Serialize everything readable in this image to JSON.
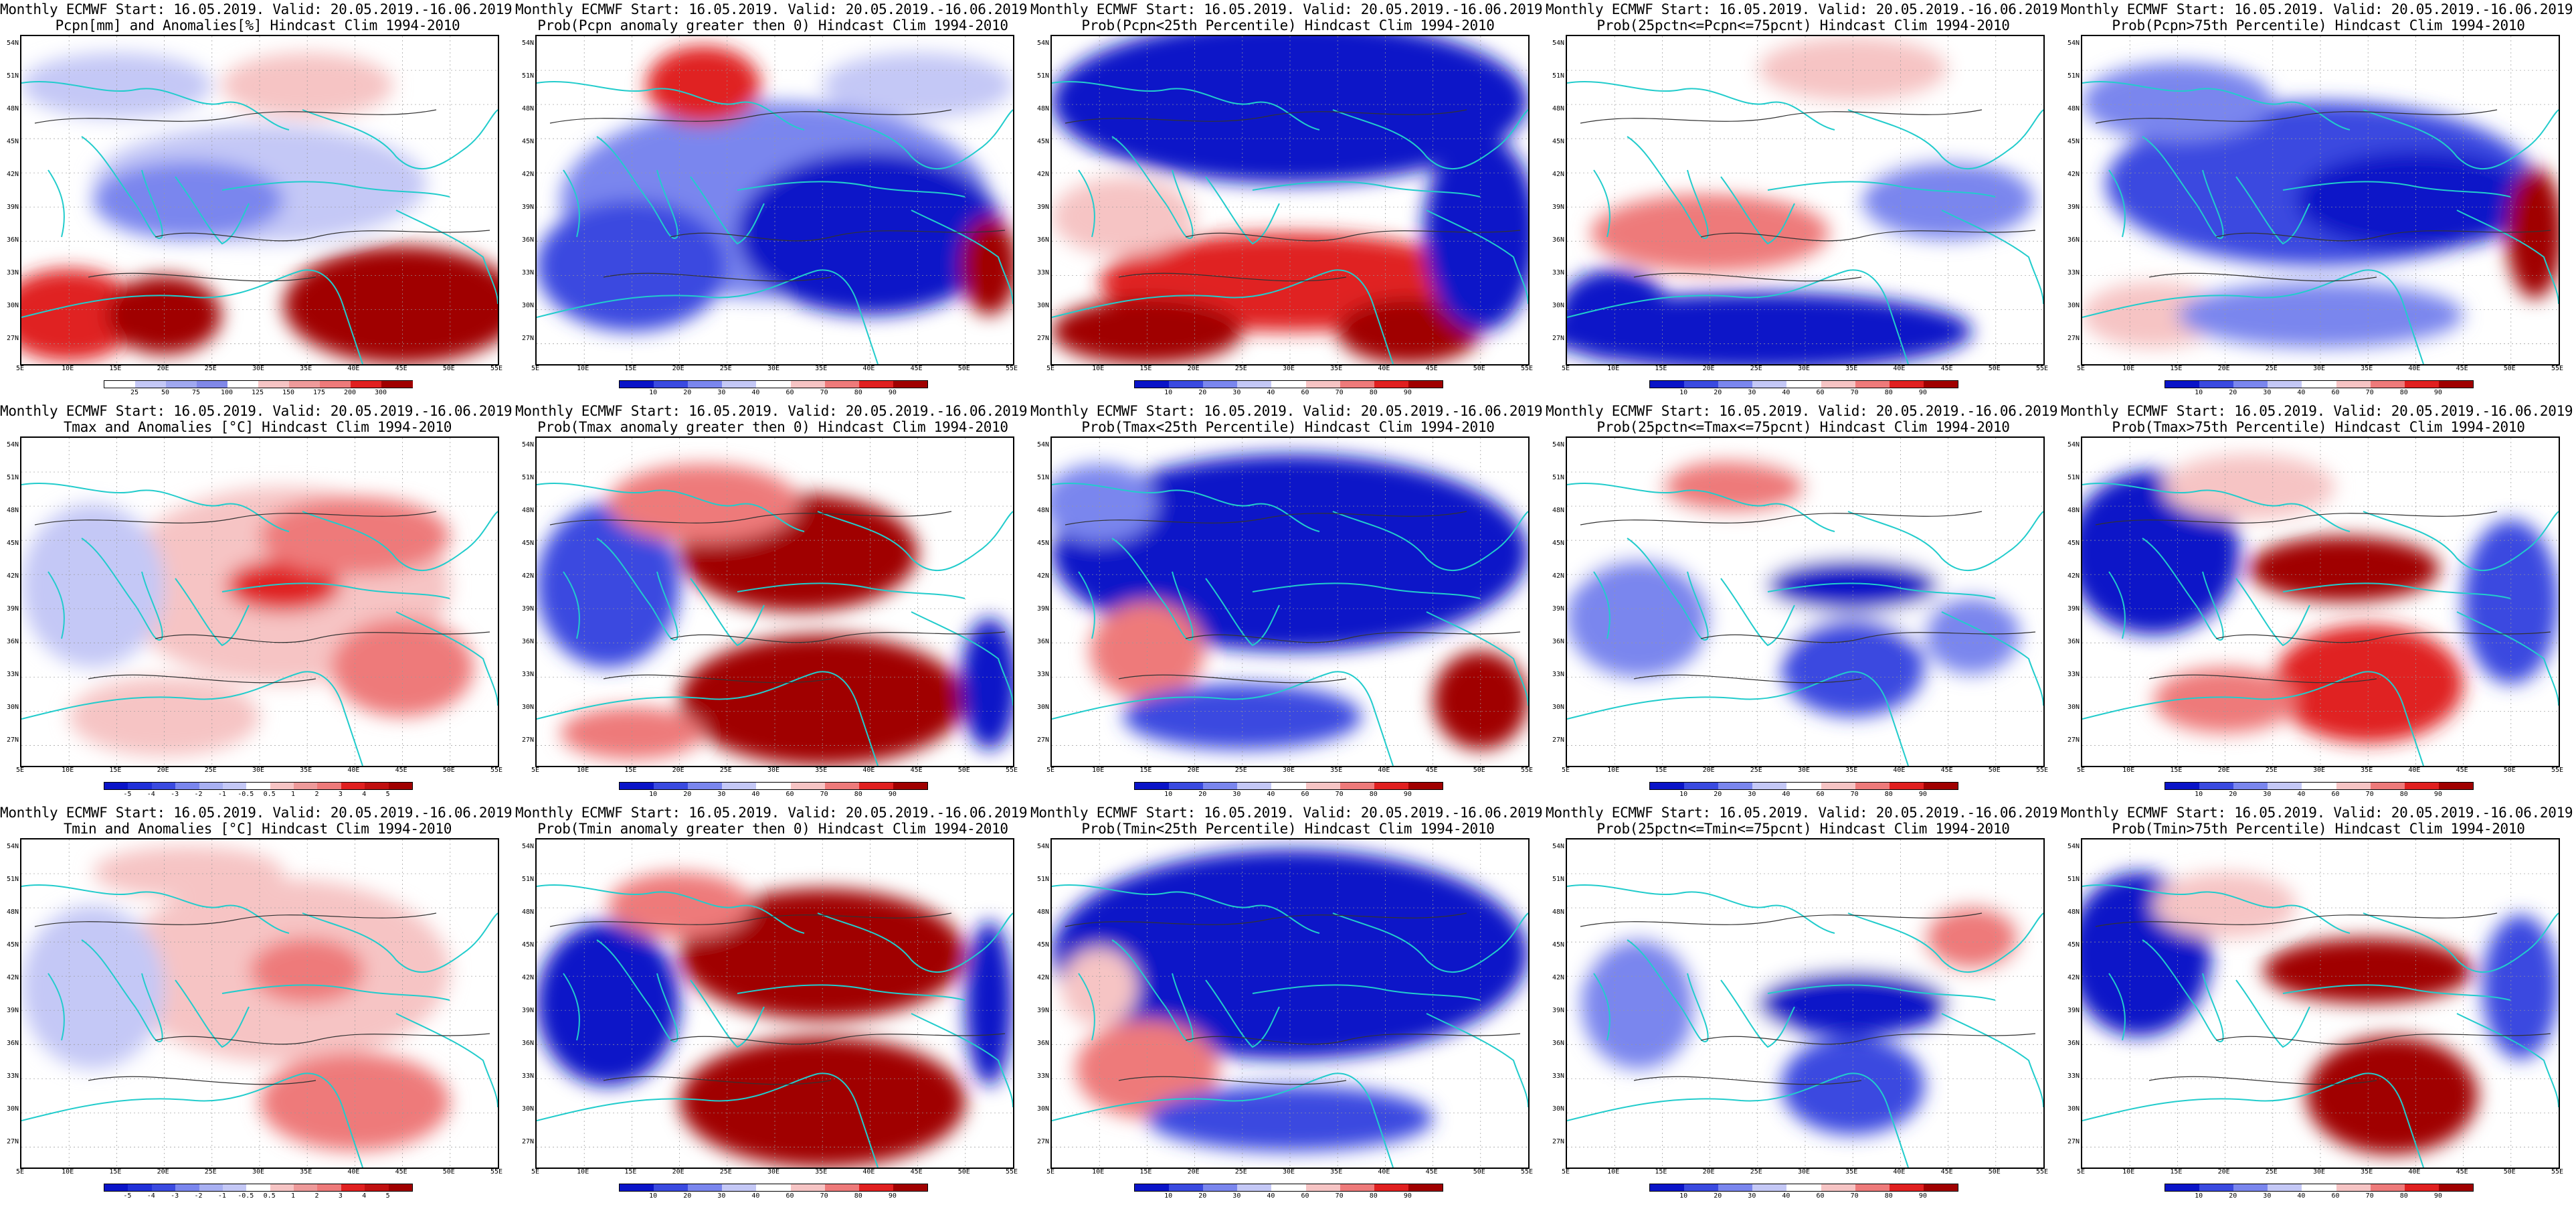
{
  "header": {
    "line1": "Monthly ECMWF Start: 16.05.2019. Valid: 20.05.2019.-16.06.2019."
  },
  "axes": {
    "lat_labels": [
      "54N",
      "51N",
      "48N",
      "45N",
      "42N",
      "39N",
      "36N",
      "33N",
      "30N",
      "27N"
    ],
    "lon_labels": [
      "5E",
      "10E",
      "15E",
      "20E",
      "25E",
      "30E",
      "35E",
      "40E",
      "45E",
      "50E",
      "55E"
    ]
  },
  "colors": {
    "deep_blue": "#0a14c8",
    "blue": "#3a4ae0",
    "mid_blue": "#7a86ee",
    "light_blue": "#c4c8f6",
    "white": "#ffffff",
    "light_red": "#f6c4c4",
    "mid_red": "#ee7a7a",
    "red": "#e02020",
    "dark_red": "#a00000",
    "coast": "#22cccc",
    "contour": "#333333"
  },
  "colorbars": {
    "prob": [
      "10",
      "20",
      "30",
      "40",
      "60",
      "70",
      "80",
      "90"
    ],
    "precip": [
      "25",
      "50",
      "75",
      "100",
      "125",
      "150",
      "175",
      "200",
      "300"
    ],
    "temp": [
      "-5",
      "-4",
      "-3",
      "-2",
      "-1",
      "-0.5",
      "0.5",
      "1",
      "2",
      "3",
      "4",
      "5"
    ]
  },
  "panels": [
    {
      "title2": "Pcpn[mm] and Anomalies[%] Hindcast Clim 1994-2010",
      "scheme": "precip",
      "pattern": "pcpn_anom"
    },
    {
      "title2": "Prob(Pcpn anomaly greater then 0) Hindcast Clim 1994-2010",
      "scheme": "prob",
      "pattern": "pcpn_pos"
    },
    {
      "title2": "Prob(Pcpn<25th Percentile) Hindcast Clim 1994-2010",
      "scheme": "prob",
      "pattern": "pcpn_low"
    },
    {
      "title2": "Prob(25pctn<=Pcpn<=75pcnt) Hindcast Clim 1994-2010",
      "scheme": "prob",
      "pattern": "pcpn_mid"
    },
    {
      "title2": "Prob(Pcpn>75th Percentile) Hindcast Clim 1994-2010",
      "scheme": "prob",
      "pattern": "pcpn_high"
    },
    {
      "title2": "Tmax and Anomalies [°C] Hindcast Clim 1994-2010",
      "scheme": "temp",
      "pattern": "t_anom"
    },
    {
      "title2": "Prob(Tmax anomaly greater then 0) Hindcast Clim 1994-2010",
      "scheme": "prob",
      "pattern": "t_pos"
    },
    {
      "title2": "Prob(Tmax<25th Percentile) Hindcast Clim 1994-2010",
      "scheme": "prob",
      "pattern": "t_low"
    },
    {
      "title2": "Prob(25pctn<=Tmax<=75pcnt) Hindcast Clim 1994-2010",
      "scheme": "prob",
      "pattern": "t_mid"
    },
    {
      "title2": "Prob(Tmax>75th Percentile) Hindcast Clim 1994-2010",
      "scheme": "prob",
      "pattern": "t_high"
    },
    {
      "title2": "Tmin and Anomalies [°C] Hindcast Clim 1994-2010",
      "scheme": "temp",
      "pattern": "tn_anom"
    },
    {
      "title2": "Prob(Tmin anomaly greater then 0) Hindcast Clim 1994-2010",
      "scheme": "prob",
      "pattern": "tn_pos"
    },
    {
      "title2": "Prob(Tmin<25th Percentile) Hindcast Clim 1994-2010",
      "scheme": "prob",
      "pattern": "tn_low"
    },
    {
      "title2": "Prob(25pctn<=Tmin<=75pcnt) Hindcast Clim 1994-2010",
      "scheme": "prob",
      "pattern": "tn_mid"
    },
    {
      "title2": "Prob(Tmin>75th Percentile) Hindcast Clim 1994-2010",
      "scheme": "prob",
      "pattern": "tn_high"
    }
  ]
}
